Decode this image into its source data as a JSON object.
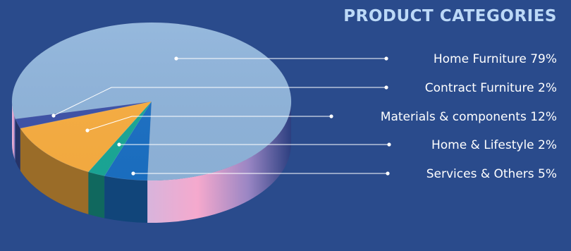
{
  "title": "PRODUCT CATEGORIES",
  "chart_data": {
    "type": "pie",
    "style": "3d-exploded-label-callouts",
    "title": "PRODUCT CATEGORIES",
    "slices": [
      {
        "label": "Home Furniture",
        "value": 79,
        "display": "Home Furniture 79%",
        "color": "#8fb4db"
      },
      {
        "label": "Contract Furniture",
        "value": 2,
        "display": "Contract Furniture 2%",
        "color": "#3d52a8"
      },
      {
        "label": "Materials & components",
        "value": 12,
        "display": "Materials & components 12%",
        "color": "#f9ae41"
      },
      {
        "label": "Home & Lifestyle",
        "value": 2,
        "display": "Home & Lifestyle 2%",
        "color": "#1aa897"
      },
      {
        "label": "Services & Others",
        "value": 5,
        "display": "Services & Others 5%",
        "color": "#1b70c4"
      }
    ],
    "legend": "callout-labels-right"
  }
}
